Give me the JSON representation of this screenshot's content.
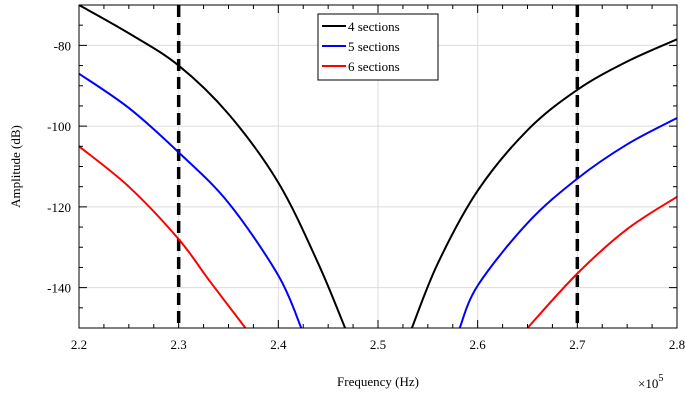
{
  "chart_data": {
    "type": "line",
    "title": "",
    "xlabel": "Frequency (Hz)",
    "ylabel": "Amplitude (dB)",
    "x_exponent_label": "×10",
    "x_exponent_power": "5",
    "xlim": [
      2.2,
      2.8
    ],
    "ylim": [
      -150,
      -70
    ],
    "x_ticks": [
      2.2,
      2.3,
      2.4,
      2.5,
      2.6,
      2.7,
      2.8
    ],
    "x_tick_labels": [
      "2.2",
      "2.3",
      "2.4",
      "2.5",
      "2.6",
      "2.7",
      "2.8"
    ],
    "y_ticks": [
      -140,
      -120,
      -100,
      -80
    ],
    "y_tick_labels": [
      "-140",
      "-120",
      "-100",
      "-80"
    ],
    "grid": true,
    "legend_position": "top-center",
    "vertical_markers": [
      {
        "x": 2.3,
        "style": "dashed",
        "color": "#000000"
      },
      {
        "x": 2.7,
        "style": "dashed",
        "color": "#000000"
      }
    ],
    "series": [
      {
        "name": "4 sections",
        "color": "#000000",
        "segments": [
          {
            "x": [
              2.2,
              2.25,
              2.3,
              2.35,
              2.4,
              2.44,
              2.467
            ],
            "y": [
              -70,
              -77,
              -85,
              -97,
              -114,
              -134,
              -150
            ]
          },
          {
            "x": [
              2.534,
              2.56,
              2.6,
              2.65,
              2.7,
              2.75,
              2.8
            ],
            "y": [
              -150,
              -134,
              -116,
              -101,
              -91,
              -84,
              -78.5
            ]
          }
        ]
      },
      {
        "name": "5 sections",
        "color": "#0000ff",
        "segments": [
          {
            "x": [
              2.2,
              2.25,
              2.3,
              2.35,
              2.4,
              2.423
            ],
            "y": [
              -87,
              -95.5,
              -106.5,
              -119,
              -137,
              -150
            ]
          },
          {
            "x": [
              2.582,
              2.6,
              2.65,
              2.7,
              2.75,
              2.8
            ],
            "y": [
              -150,
              -139.5,
              -124,
              -113,
              -104.5,
              -98
            ]
          }
        ]
      },
      {
        "name": "6 sections",
        "color": "#ff0000",
        "segments": [
          {
            "x": [
              2.2,
              2.25,
              2.3,
              2.33,
              2.367
            ],
            "y": [
              -105,
              -115,
              -128,
              -138,
              -150
            ]
          },
          {
            "x": [
              2.65,
              2.7,
              2.75,
              2.8
            ],
            "y": [
              -150,
              -136.5,
              -125.5,
              -117.5
            ]
          }
        ]
      }
    ]
  }
}
